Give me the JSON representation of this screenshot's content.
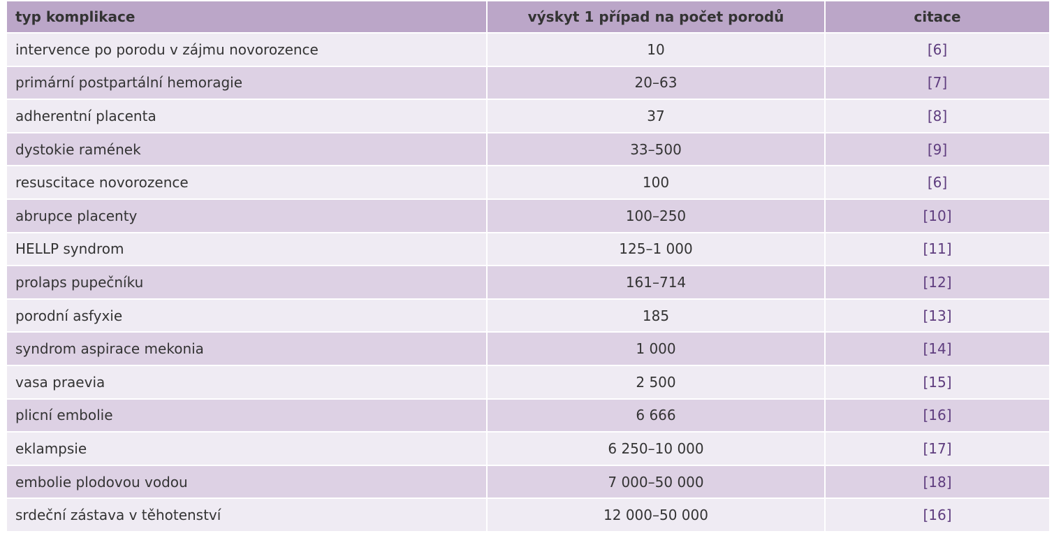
{
  "table": {
    "header": [
      "typ komplikace",
      "výskyt 1 případ na počet porodů",
      "citace"
    ],
    "rows": [
      [
        "intervence po porodu v zájmu novorozence",
        "10",
        "[6]"
      ],
      [
        "primární postpartální hemoragie",
        "20–63",
        "[7]"
      ],
      [
        "adherentní placenta",
        "37",
        "[8]"
      ],
      [
        "dystokie ramének",
        "33–500",
        "[9]"
      ],
      [
        "resuscitace novorozence",
        "100",
        "[6]"
      ],
      [
        "abrupce placenty",
        "100–250",
        "[10]"
      ],
      [
        "HELLP syndrom",
        "125–1 000",
        "[11]"
      ],
      [
        "prolaps pupečníku",
        "161–714",
        "[12]"
      ],
      [
        "porodní asfyxie",
        "185",
        "[13]"
      ],
      [
        "syndrom aspirace mekonia",
        "1 000",
        "[14]"
      ],
      [
        "vasa praevia",
        "2 500",
        "[15]"
      ],
      [
        "plicní embolie",
        "6 666",
        "[16]"
      ],
      [
        "eklampsie",
        "6 250–10 000",
        "[17]"
      ],
      [
        "embolie plodovou vodou",
        "7 000–50 000",
        "[18]"
      ],
      [
        "srdeční zástava v těhotenství",
        "12 000–50 000",
        "[16]"
      ]
    ]
  }
}
